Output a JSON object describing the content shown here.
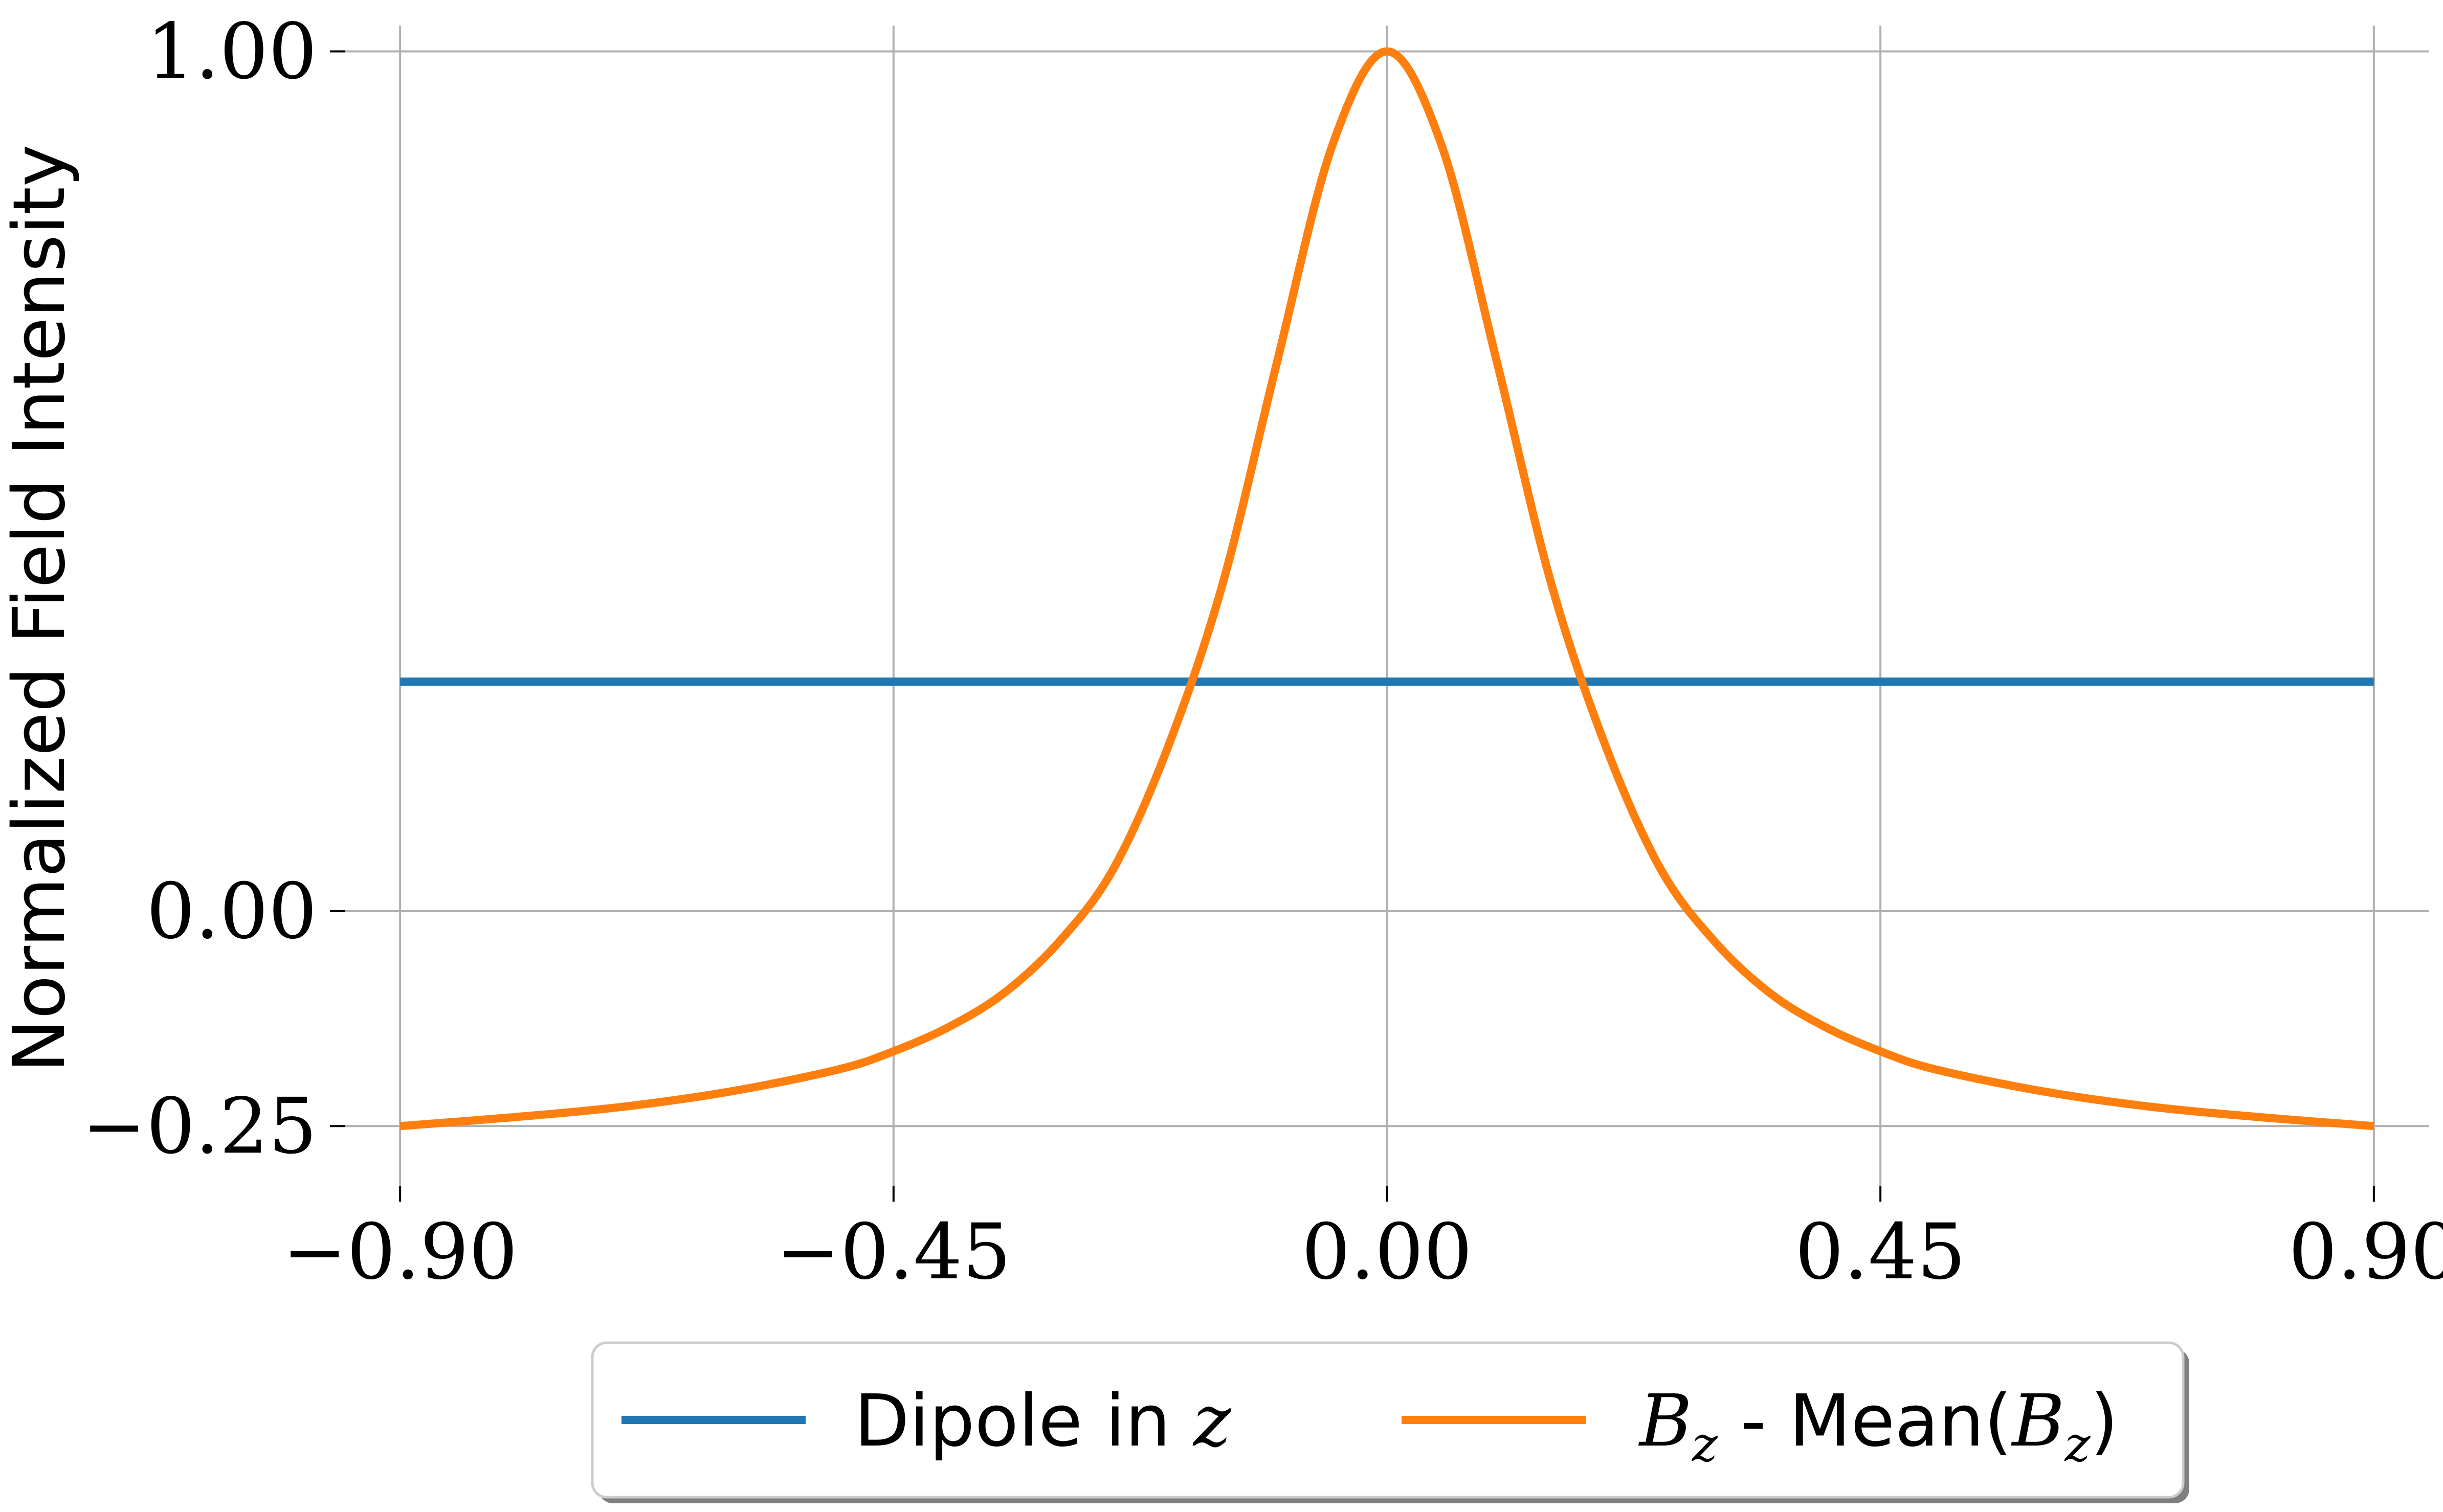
{
  "chart_data": {
    "type": "line",
    "ylabel": "Normalized Field Intensity",
    "xlabel": "",
    "xlim": [
      -0.95,
      0.95
    ],
    "ylim": [
      -0.32,
      1.03
    ],
    "x_ticks": [
      -0.9,
      -0.45,
      0.0,
      0.45,
      0.9
    ],
    "x_tick_labels": [
      "−0.90",
      "−0.45",
      "0.00",
      "0.45",
      "0.90"
    ],
    "y_ticks": [
      -0.25,
      0.0,
      1.0
    ],
    "y_tick_labels": [
      "−0.25",
      "0.00",
      "1.00"
    ],
    "grid": true,
    "legend_placement": "bottom-center, below axes",
    "series": [
      {
        "name": "Dipole in z",
        "legend_parts": [
          "Dipole in ",
          "z"
        ],
        "color": "#1f77b4",
        "x": [
          -0.9,
          0.9
        ],
        "y": [
          0.267,
          0.267
        ]
      },
      {
        "name": "B_z - Mean(B_z)",
        "legend_parts": [
          "B",
          "z",
          " - Mean(",
          "B",
          "z",
          ")"
        ],
        "color": "#ff7f0e",
        "x": [
          -0.9,
          -0.8,
          -0.7,
          -0.6,
          -0.5,
          -0.45,
          -0.4,
          -0.35,
          -0.3,
          -0.25,
          -0.2,
          -0.15,
          -0.1,
          -0.05,
          0.0,
          0.05,
          0.1,
          0.15,
          0.2,
          0.25,
          0.3,
          0.35,
          0.4,
          0.45,
          0.5,
          0.6,
          0.7,
          0.8,
          0.9
        ],
        "y": [
          -0.25,
          -0.24,
          -0.228,
          -0.21,
          -0.184,
          -0.163,
          -0.135,
          -0.096,
          -0.037,
          0.048,
          0.19,
          0.38,
          0.64,
          0.89,
          1.0,
          0.89,
          0.64,
          0.38,
          0.19,
          0.048,
          -0.037,
          -0.096,
          -0.135,
          -0.163,
          -0.184,
          -0.21,
          -0.228,
          -0.24,
          -0.25
        ]
      }
    ]
  }
}
